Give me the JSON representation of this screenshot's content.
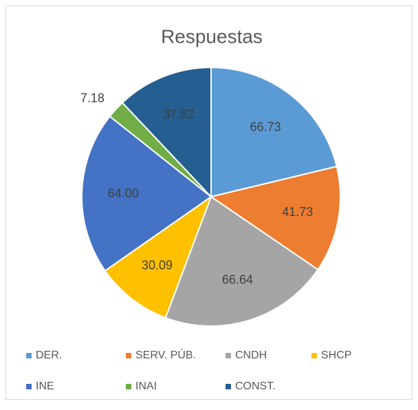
{
  "chart_data": {
    "type": "pie",
    "title": "Respuestas",
    "categories": [
      "DER.",
      "SERV. PÚB.",
      "CNDH",
      "SHCP",
      "INE",
      "INAI",
      "CONST."
    ],
    "values": [
      66.73,
      41.73,
      66.64,
      30.09,
      64.0,
      7.18,
      37.82
    ],
    "value_labels": [
      "66.73",
      "41.73",
      "66.64",
      "30.09",
      "64.00",
      "7.18",
      "37.82"
    ],
    "colors": [
      "#5b9bd5",
      "#ed7d31",
      "#a5a5a5",
      "#ffc000",
      "#4472c4",
      "#70ad47",
      "#255e91"
    ],
    "legend": "bottom"
  }
}
